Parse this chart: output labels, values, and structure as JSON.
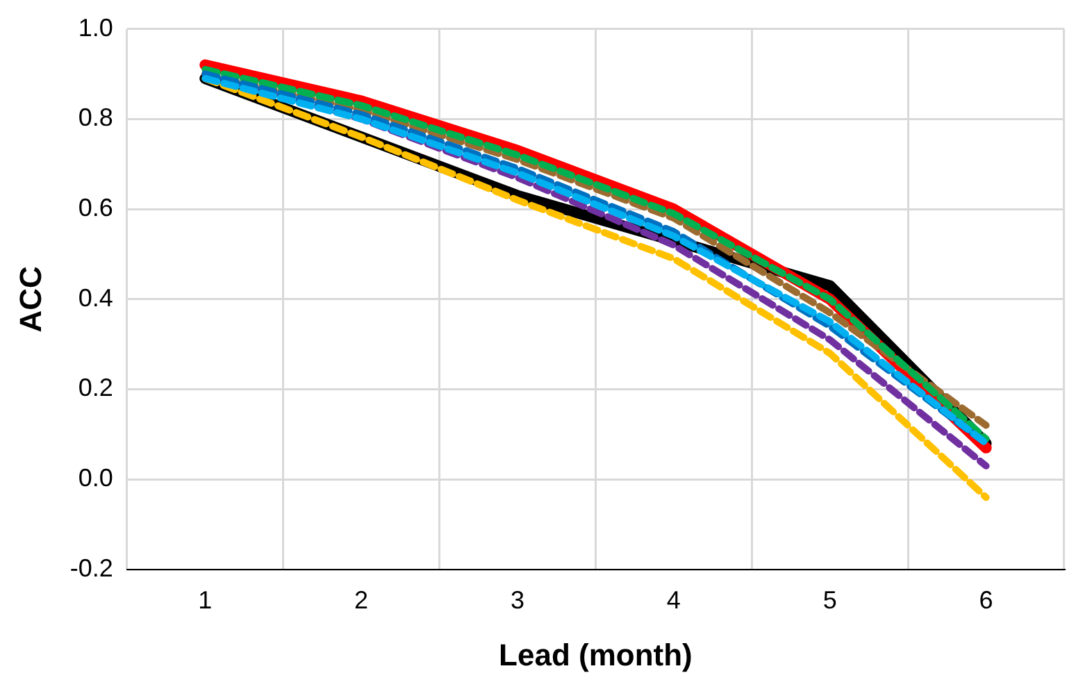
{
  "chart_data": {
    "type": "line",
    "xlabel": "Lead (month)",
    "ylabel": "ACC",
    "categories": [
      "1",
      "2",
      "3",
      "4",
      "5",
      "6"
    ],
    "ylim": [
      -0.2,
      1.0
    ],
    "yticks": [
      {
        "value": -0.2,
        "label": "-0.2"
      },
      {
        "value": 0,
        "label": "0.0"
      },
      {
        "value": 0.2,
        "label": "0.2"
      },
      {
        "value": 0.4,
        "label": "0.4"
      },
      {
        "value": 0.6,
        "label": "0.6"
      },
      {
        "value": 0.8,
        "label": "0.8"
      },
      {
        "value": 1.0,
        "label": "1.0"
      }
    ],
    "grid": true,
    "legend": false,
    "marker": "none",
    "series": [
      {
        "color": "#000000",
        "line_style": "solid",
        "values": [
          0.89,
          0.76,
          0.63,
          0.53,
          0.43,
          0.08
        ]
      },
      {
        "color": "#ff0000",
        "line_style": "solid",
        "values": [
          0.92,
          0.84,
          0.73,
          0.6,
          0.4,
          0.07
        ]
      },
      {
        "color": "#ffc000",
        "line_style": "dashed",
        "values": [
          0.89,
          0.76,
          0.62,
          0.49,
          0.28,
          -0.04
        ]
      },
      {
        "color": "#9c6b30",
        "line_style": "dashed",
        "values": [
          0.9,
          0.82,
          0.71,
          0.58,
          0.37,
          0.12
        ]
      },
      {
        "color": "#00b050",
        "line_style": "dashed",
        "values": [
          0.91,
          0.83,
          0.72,
          0.59,
          0.4,
          0.09
        ]
      },
      {
        "color": "#7030a0",
        "line_style": "dashed",
        "values": [
          0.9,
          0.8,
          0.67,
          0.52,
          0.31,
          0.03
        ]
      },
      {
        "color": "#0070c0",
        "line_style": "dashed",
        "values": [
          0.9,
          0.81,
          0.69,
          0.55,
          0.34,
          0.08
        ]
      },
      {
        "color": "#00b0f0",
        "line_style": "dashed",
        "values": [
          0.89,
          0.8,
          0.68,
          0.54,
          0.35,
          0.08
        ]
      }
    ]
  }
}
